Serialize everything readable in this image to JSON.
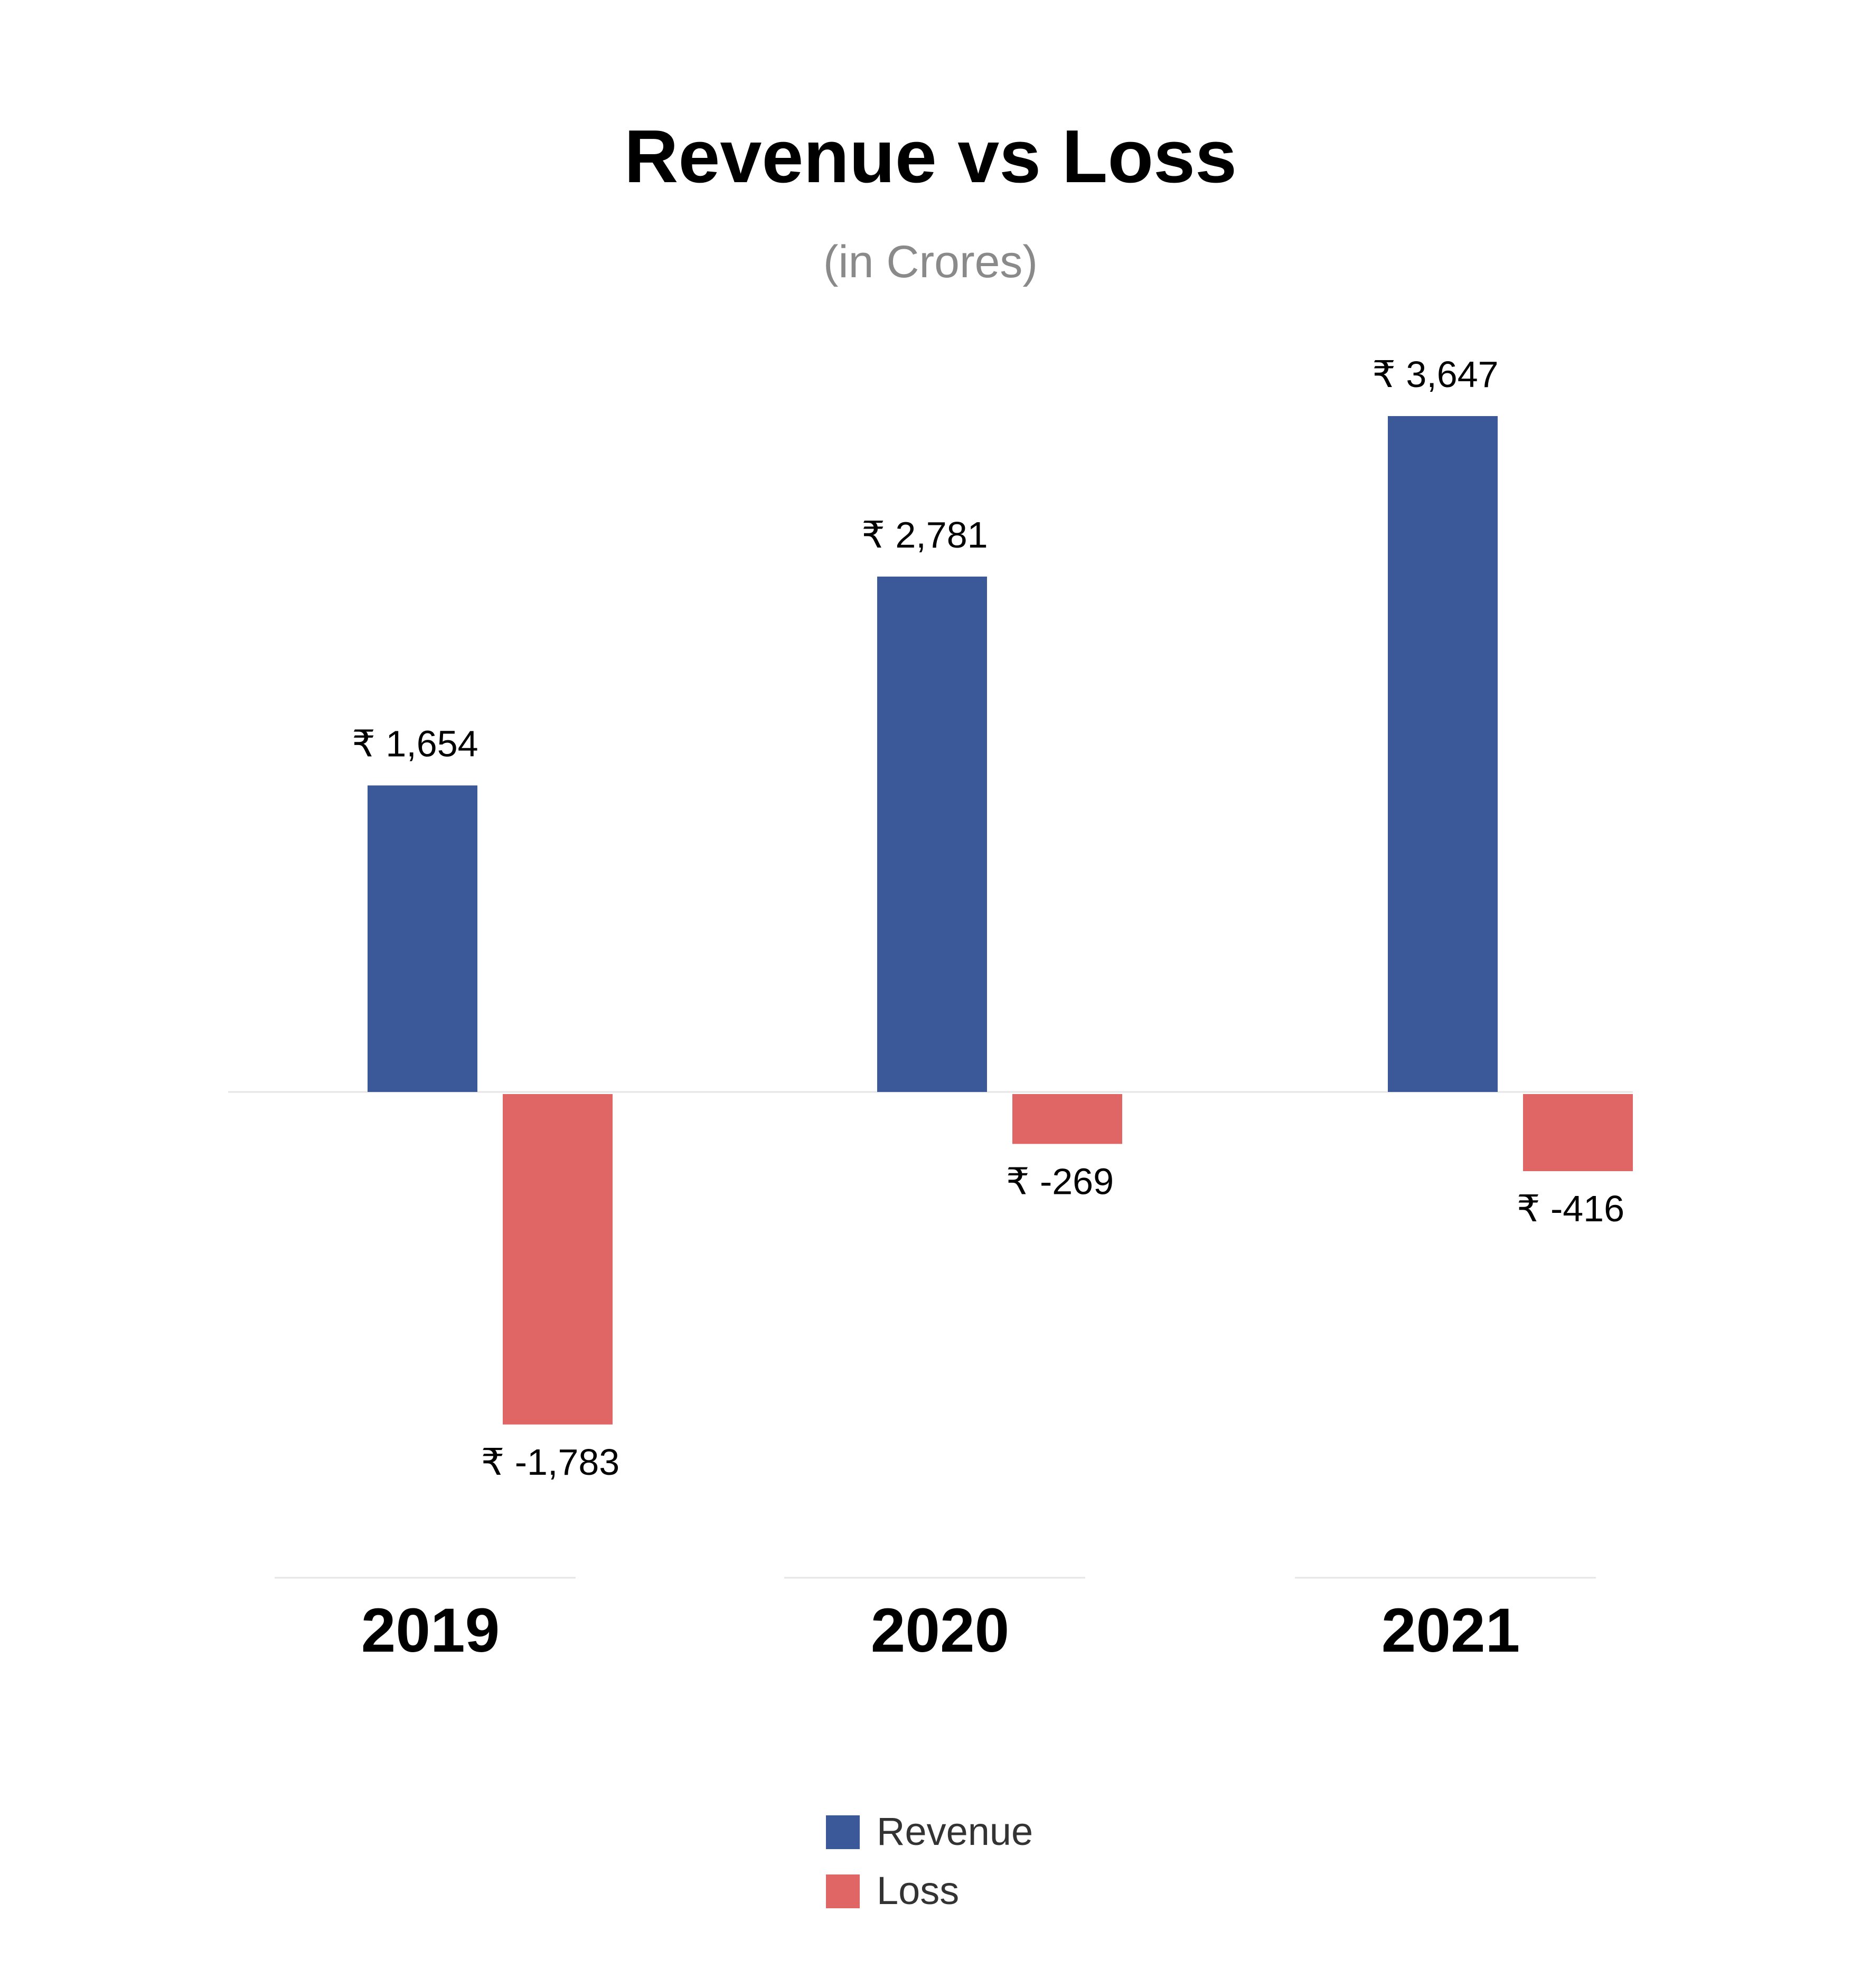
{
  "chart_data": {
    "type": "bar",
    "title": "Revenue vs Loss",
    "subtitle": "(in Crores)",
    "categories": [
      "2019",
      "2020",
      "2021"
    ],
    "series": [
      {
        "name": "Revenue",
        "color": "#3b5998",
        "values": [
          1654,
          2781,
          3647
        ],
        "labels": [
          "₹ 1,654",
          "₹ 2,781",
          "₹ 3,647"
        ]
      },
      {
        "name": "Loss",
        "color": "#e06666",
        "values": [
          -1783,
          -269,
          -416
        ],
        "labels": [
          "₹ -1,783",
          "₹ -269",
          "₹ -416"
        ]
      }
    ],
    "ylim": [
      -1783,
      3647
    ],
    "grid": false,
    "legend_position": "bottom-center",
    "baseline_color": "#e6e6e6"
  }
}
